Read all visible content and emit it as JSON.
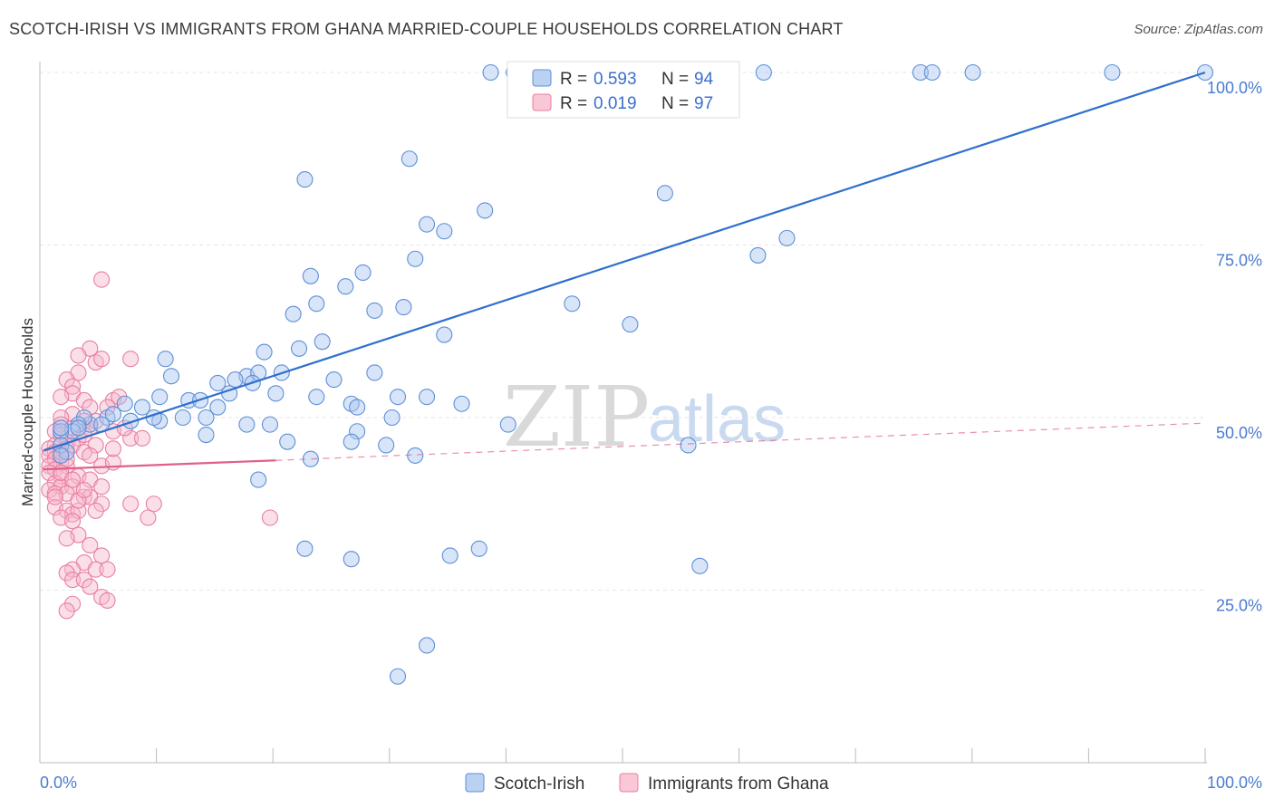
{
  "header": {
    "title": "SCOTCH-IRISH VS IMMIGRANTS FROM GHANA MARRIED-COUPLE HOUSEHOLDS CORRELATION CHART",
    "source": "Source: ZipAtlas.com"
  },
  "watermark": {
    "zip": "ZIP",
    "atlas": "atlas"
  },
  "colors": {
    "blue_fill": "#a9c6ef",
    "blue_stroke": "#5d8fd8",
    "blue_line": "#2f6fce",
    "pink_fill": "#f7b9cc",
    "pink_stroke": "#e87fa0",
    "pink_line": "#e0608a",
    "grid": "#e6e6e6",
    "tick_label": "#4a7bd0"
  },
  "legend": {
    "rows": [
      {
        "r_label": "R = ",
        "r_value": "0.593",
        "n_label": "N = ",
        "n_value": "94"
      },
      {
        "r_label": "R = ",
        "r_value": "0.019",
        "n_label": "N = ",
        "n_value": "97"
      }
    ]
  },
  "bottom_legend": [
    "Scotch-Irish",
    "Immigrants from Ghana"
  ],
  "chart_data": {
    "type": "scatter",
    "title": "SCOTCH-IRISH VS IMMIGRANTS FROM GHANA MARRIED-COUPLE HOUSEHOLDS CORRELATION CHART",
    "xlabel": "",
    "ylabel": "Married-couple Households",
    "xlim": [
      0,
      100
    ],
    "ylim": [
      0,
      100
    ],
    "x_tick_labels": [
      "0.0%",
      "100.0%"
    ],
    "y_ticks": [
      25,
      50,
      75,
      100
    ],
    "y_tick_labels": [
      "25.0%",
      "50.0%",
      "75.0%",
      "100.0%"
    ],
    "series": [
      {
        "name": "Scotch-Irish",
        "R": 0.593,
        "N": 94,
        "trend": {
          "x": [
            0,
            100
          ],
          "y": [
            45.2,
            100
          ]
        },
        "points": [
          [
            38.5,
            100
          ],
          [
            40.5,
            100
          ],
          [
            41.5,
            100
          ],
          [
            56.5,
            100
          ],
          [
            62.0,
            100
          ],
          [
            75.5,
            100
          ],
          [
            76.5,
            100
          ],
          [
            80.0,
            100
          ],
          [
            92.0,
            100
          ],
          [
            100,
            100
          ],
          [
            31.5,
            87.5
          ],
          [
            22.5,
            84.5
          ],
          [
            53.5,
            82.5
          ],
          [
            38.0,
            80.0
          ],
          [
            33.0,
            78.0
          ],
          [
            34.5,
            77.0
          ],
          [
            64.0,
            76.0
          ],
          [
            61.5,
            73.5
          ],
          [
            32.0,
            73.0
          ],
          [
            23.0,
            70.5
          ],
          [
            27.5,
            71.0
          ],
          [
            26.0,
            69.0
          ],
          [
            31.0,
            66.0
          ],
          [
            23.5,
            66.5
          ],
          [
            21.5,
            65.0
          ],
          [
            28.5,
            65.5
          ],
          [
            45.5,
            66.5
          ],
          [
            50.5,
            63.5
          ],
          [
            34.5,
            62.0
          ],
          [
            24.0,
            61.0
          ],
          [
            19.0,
            59.5
          ],
          [
            22.0,
            60.0
          ],
          [
            10.5,
            58.5
          ],
          [
            20.5,
            56.5
          ],
          [
            25.0,
            55.5
          ],
          [
            17.5,
            56.0
          ],
          [
            28.5,
            56.5
          ],
          [
            18.5,
            56.5
          ],
          [
            11.0,
            56.0
          ],
          [
            18.0,
            55.0
          ],
          [
            15.0,
            55.0
          ],
          [
            16.5,
            55.5
          ],
          [
            10.0,
            53.0
          ],
          [
            12.5,
            52.5
          ],
          [
            13.5,
            52.5
          ],
          [
            16.0,
            53.5
          ],
          [
            20.0,
            53.5
          ],
          [
            23.5,
            53.0
          ],
          [
            30.5,
            53.0
          ],
          [
            33.0,
            53.0
          ],
          [
            36.0,
            52.0
          ],
          [
            26.5,
            52.0
          ],
          [
            27.0,
            51.5
          ],
          [
            30.0,
            50.0
          ],
          [
            40.0,
            49.0
          ],
          [
            17.5,
            49.0
          ],
          [
            15.0,
            51.5
          ],
          [
            14.0,
            50.0
          ],
          [
            10.0,
            49.5
          ],
          [
            8.5,
            51.5
          ],
          [
            7.0,
            52.0
          ],
          [
            5.5,
            50.0
          ],
          [
            6.0,
            50.5
          ],
          [
            4.0,
            49.0
          ],
          [
            3.5,
            50.0
          ],
          [
            3.0,
            49.0
          ],
          [
            2.5,
            48.0
          ],
          [
            1.5,
            48.0
          ],
          [
            1.5,
            48.5
          ],
          [
            1.5,
            46.0
          ],
          [
            2.0,
            45.0
          ],
          [
            1.5,
            44.5
          ],
          [
            12.0,
            50.0
          ],
          [
            3.0,
            48.5
          ],
          [
            27.0,
            48.0
          ],
          [
            19.5,
            49.0
          ],
          [
            26.5,
            46.5
          ],
          [
            29.5,
            46.0
          ],
          [
            14.0,
            47.5
          ],
          [
            55.5,
            46.0
          ],
          [
            21.0,
            46.5
          ],
          [
            23.0,
            44.0
          ],
          [
            32.0,
            44.5
          ],
          [
            18.5,
            41.0
          ],
          [
            22.5,
            31.0
          ],
          [
            26.5,
            29.5
          ],
          [
            35.0,
            30.0
          ],
          [
            37.5,
            31.0
          ],
          [
            56.5,
            28.5
          ],
          [
            33.0,
            17.0
          ],
          [
            30.5,
            12.5
          ],
          [
            5.0,
            49.0
          ],
          [
            7.5,
            49.5
          ],
          [
            9.5,
            50.0
          ]
        ]
      },
      {
        "name": "Immigrants from Ghana",
        "R": 0.019,
        "N": 97,
        "trend": {
          "x": [
            0,
            20
          ],
          "y": [
            42.5,
            43.8
          ],
          "dashed_extension": {
            "x": [
              20,
              100
            ],
            "y": [
              43.8,
              49.2
            ]
          }
        },
        "points": [
          [
            5.0,
            70.0
          ],
          [
            4.0,
            60.0
          ],
          [
            3.0,
            59.0
          ],
          [
            4.5,
            58.0
          ],
          [
            5.0,
            58.5
          ],
          [
            7.5,
            58.5
          ],
          [
            3.0,
            56.5
          ],
          [
            2.0,
            55.5
          ],
          [
            2.5,
            54.5
          ],
          [
            2.5,
            53.5
          ],
          [
            1.5,
            53.0
          ],
          [
            3.5,
            52.5
          ],
          [
            6.0,
            52.5
          ],
          [
            4.0,
            51.5
          ],
          [
            2.5,
            50.5
          ],
          [
            1.5,
            50.0
          ],
          [
            3.5,
            49.5
          ],
          [
            1.5,
            49.0
          ],
          [
            2.5,
            48.5
          ],
          [
            4.0,
            48.5
          ],
          [
            6.0,
            48.0
          ],
          [
            1.0,
            48.0
          ],
          [
            1.5,
            47.5
          ],
          [
            3.0,
            47.0
          ],
          [
            7.5,
            47.0
          ],
          [
            8.5,
            47.0
          ],
          [
            2.0,
            46.5
          ],
          [
            4.5,
            46.0
          ],
          [
            1.0,
            46.0
          ],
          [
            0.5,
            45.5
          ],
          [
            1.0,
            45.0
          ],
          [
            2.0,
            45.5
          ],
          [
            0.5,
            44.5
          ],
          [
            1.0,
            44.0
          ],
          [
            1.5,
            43.5
          ],
          [
            0.5,
            43.0
          ],
          [
            1.0,
            42.5
          ],
          [
            2.0,
            43.0
          ],
          [
            5.0,
            43.0
          ],
          [
            6.0,
            43.5
          ],
          [
            0.5,
            42.0
          ],
          [
            1.5,
            41.5
          ],
          [
            3.0,
            41.5
          ],
          [
            4.0,
            41.0
          ],
          [
            1.0,
            40.5
          ],
          [
            1.5,
            40.0
          ],
          [
            2.5,
            40.0
          ],
          [
            5.0,
            40.0
          ],
          [
            0.5,
            39.5
          ],
          [
            1.0,
            39.0
          ],
          [
            2.0,
            39.0
          ],
          [
            3.5,
            38.5
          ],
          [
            4.0,
            38.5
          ],
          [
            7.5,
            37.5
          ],
          [
            9.5,
            37.5
          ],
          [
            1.0,
            37.0
          ],
          [
            2.0,
            36.5
          ],
          [
            2.5,
            36.0
          ],
          [
            3.0,
            36.5
          ],
          [
            1.5,
            35.5
          ],
          [
            2.5,
            35.0
          ],
          [
            9.0,
            35.5
          ],
          [
            19.5,
            35.5
          ],
          [
            3.0,
            33.0
          ],
          [
            2.0,
            32.5
          ],
          [
            4.0,
            31.5
          ],
          [
            5.0,
            30.0
          ],
          [
            3.5,
            29.0
          ],
          [
            2.5,
            28.0
          ],
          [
            4.5,
            28.0
          ],
          [
            5.5,
            28.0
          ],
          [
            2.0,
            27.5
          ],
          [
            2.5,
            26.5
          ],
          [
            3.5,
            26.5
          ],
          [
            4.0,
            25.5
          ],
          [
            5.0,
            24.0
          ],
          [
            5.5,
            23.5
          ],
          [
            2.5,
            23.0
          ],
          [
            2.0,
            22.0
          ],
          [
            1.5,
            45.0
          ],
          [
            2.5,
            46.0
          ],
          [
            3.5,
            45.0
          ],
          [
            6.5,
            53.0
          ],
          [
            5.5,
            51.5
          ],
          [
            4.5,
            49.5
          ],
          [
            3.5,
            47.5
          ],
          [
            2.0,
            44.0
          ],
          [
            1.0,
            38.5
          ],
          [
            3.0,
            38.0
          ],
          [
            5.0,
            37.5
          ],
          [
            4.0,
            44.5
          ],
          [
            6.0,
            45.5
          ],
          [
            7.0,
            48.5
          ],
          [
            1.5,
            42.0
          ],
          [
            2.5,
            41.0
          ],
          [
            3.5,
            39.5
          ],
          [
            4.5,
            36.5
          ]
        ]
      }
    ]
  }
}
